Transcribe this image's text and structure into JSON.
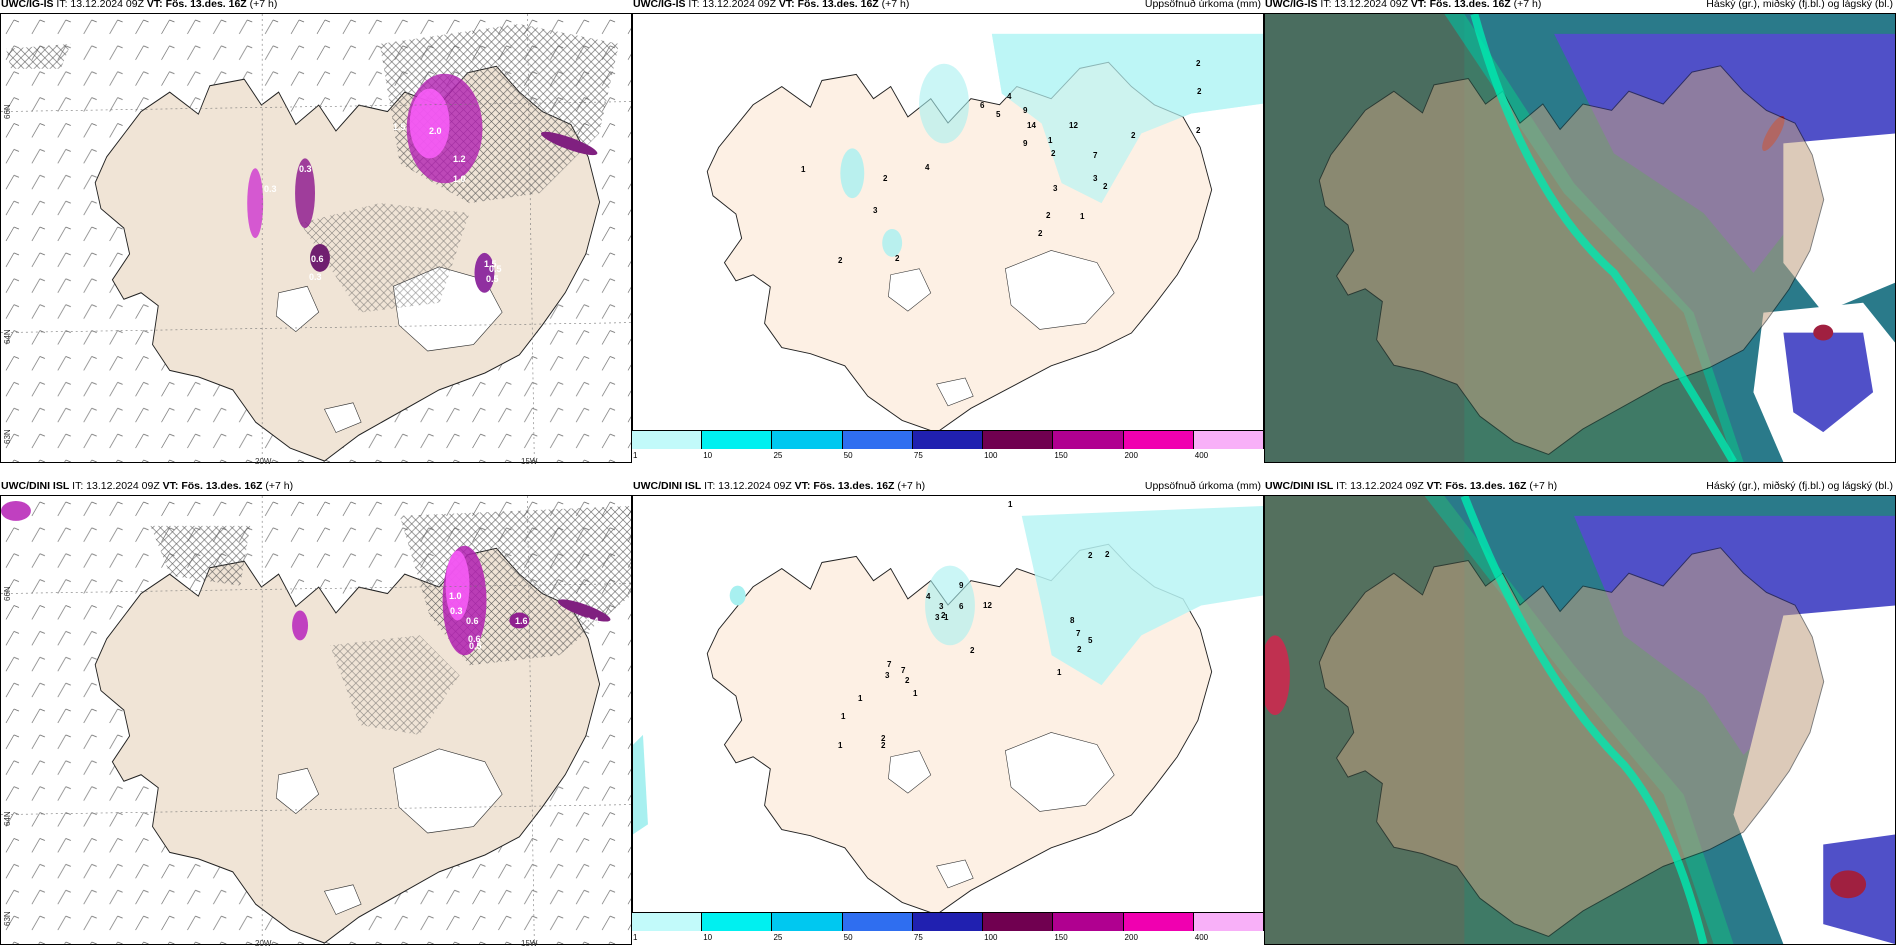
{
  "rows": [
    {
      "model": "UWC/IG-IS",
      "it_label": "IT: 13.12.2024 09Z",
      "vt_label": "VT: Fös. 13.des. 16Z",
      "lead": "(+7 h)",
      "precip_title": "Uppsöfnuð úrkoma (mm)",
      "cloud_title": "Háský (gr.), miðský (fj.bl.) og lágský (bl.)",
      "precip_values": [
        "14",
        "12",
        "7",
        "2",
        "2",
        "2",
        "2",
        "3",
        "2",
        "1",
        "6",
        "9",
        "4",
        "5",
        "9",
        "1",
        "2",
        "3",
        "2",
        "2",
        "2",
        "3",
        "2",
        "1",
        "4",
        "2"
      ],
      "snow_values": [
        "1.5",
        "2.0",
        "0.3",
        "1.2",
        "1.0",
        "0.3",
        "1.5",
        "0.6",
        "0.3",
        "0.5",
        "0.5"
      ]
    },
    {
      "model": "UWC/DINI ISL",
      "it_label": "IT: 13.12.2024 09Z",
      "vt_label": "VT: Fös. 13.des. 16Z",
      "lead": "(+7 h)",
      "precip_title": "Uppsöfnuð úrkoma (mm)",
      "cloud_title": "Háský (gr.), miðský (fj.bl.) og lágský (bl.)",
      "precip_values": [
        "1",
        "2",
        "2",
        "12",
        "9",
        "6",
        "8",
        "7",
        "5",
        "2",
        "2",
        "1",
        "3",
        "4",
        "3",
        "3",
        "2",
        "1",
        "7",
        "7",
        "2",
        "1",
        "2",
        "1",
        "1",
        "1",
        "2"
      ],
      "snow_values": [
        "1.0",
        "0.3",
        "0.6",
        "0.5",
        "0.4",
        "1.6",
        "0.6"
      ]
    }
  ],
  "axes": {
    "lon_labels": [
      "20W",
      "15W"
    ],
    "lat_labels": [
      "66N",
      "64N",
      "63N"
    ]
  },
  "legend": {
    "ticks": [
      "1",
      "10",
      "25",
      "50",
      "75",
      "100",
      "150",
      "200",
      "400"
    ],
    "colors": [
      "#c2fafa",
      "#00f0f0",
      "#00c8f0",
      "#2f6ef0",
      "#2020b0",
      "#700050",
      "#b00090",
      "#f000b0",
      "#f8b0f8"
    ]
  }
}
